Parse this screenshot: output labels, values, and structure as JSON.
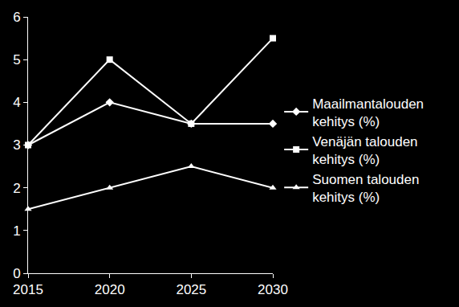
{
  "chart_data": {
    "type": "line",
    "x": [
      2015,
      2020,
      2025,
      2030
    ],
    "xlim": [
      2015,
      2030
    ],
    "xticks": [
      2015,
      2020,
      2025,
      2030
    ],
    "ylim": [
      0,
      6
    ],
    "yticks": [
      0,
      1,
      2,
      3,
      4,
      5,
      6
    ],
    "grid": false,
    "legend": "right",
    "series": [
      {
        "name": "Maailmantalouden kehitys (%)",
        "color": "#ffffff",
        "marker": "diamond",
        "values": [
          3,
          4,
          3.5,
          3.5
        ]
      },
      {
        "name": "Venäjän talouden kehitys (%)",
        "color": "#ffffff",
        "marker": "square",
        "values": [
          3,
          5,
          3.5,
          5.5
        ]
      },
      {
        "name": "Suomen talouden kehitys (%)",
        "color": "#ffffff",
        "marker": "triangle-up",
        "values": [
          1.5,
          2,
          2.5,
          2
        ]
      }
    ]
  }
}
